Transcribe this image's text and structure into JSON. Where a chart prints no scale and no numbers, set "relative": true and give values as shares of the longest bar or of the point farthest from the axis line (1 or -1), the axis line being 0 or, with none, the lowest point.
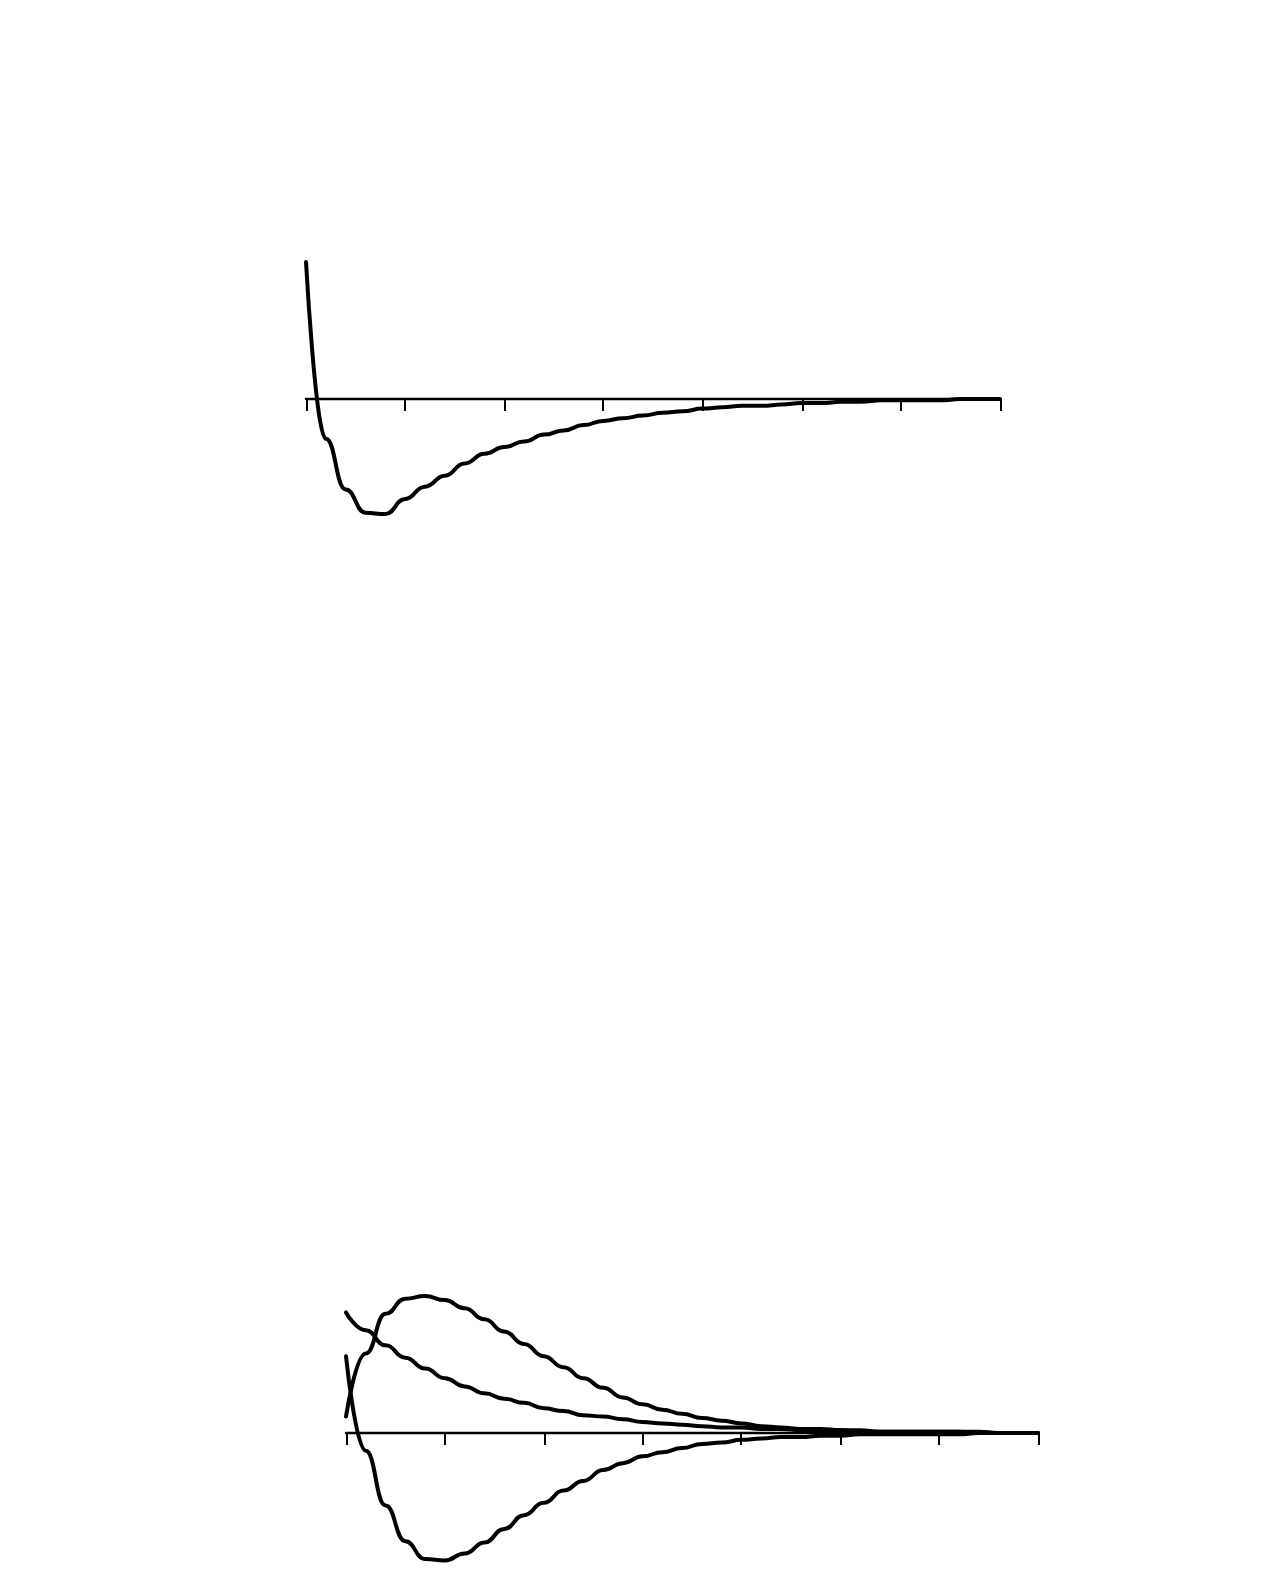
{
  "chart_data": [
    {
      "type": "line",
      "relative": true,
      "marker": "none",
      "line_style": "solid",
      "grid": false,
      "tick_labels": false,
      "categories": [
        null,
        null,
        null,
        null,
        null,
        null,
        null,
        null,
        null,
        null,
        null,
        null,
        null,
        null,
        null,
        null,
        null,
        null,
        null,
        null,
        null,
        null,
        null,
        null,
        null,
        null,
        null,
        null,
        null,
        null,
        null,
        null,
        null,
        null,
        null,
        null
      ],
      "series": [
        {
          "color": "#000000",
          "values": [
            1,
            -0.29,
            -0.66,
            -0.83,
            -0.84,
            -0.73,
            -0.64,
            -0.56,
            -0.47,
            -0.4,
            -0.35,
            -0.31,
            -0.26,
            -0.23,
            -0.19,
            -0.16,
            -0.14,
            -0.12,
            -0.1,
            -0.09,
            -0.07,
            -0.06,
            -0.05,
            -0.05,
            -0.04,
            -0.03,
            -0.03,
            -0.02,
            -0.02,
            -0.01,
            -0.01,
            -0.01,
            -0.01,
            0,
            0,
            0
          ]
        }
      ]
    },
    {
      "type": "line",
      "relative": true,
      "marker": "none",
      "line_style": "solid",
      "grid": false,
      "tick_labels": false,
      "categories": [
        null,
        null,
        null,
        null,
        null,
        null,
        null,
        null,
        null,
        null,
        null,
        null,
        null,
        null,
        null,
        null,
        null,
        null,
        null,
        null,
        null,
        null,
        null,
        null,
        null,
        null,
        null,
        null,
        null,
        null,
        null,
        null,
        null,
        null,
        null,
        null
      ],
      "series": [
        {
          "color": "#000000",
          "values": [
            0.12,
            0.58,
            0.87,
            0.98,
            1,
            0.97,
            0.91,
            0.83,
            0.74,
            0.65,
            0.56,
            0.48,
            0.4,
            0.33,
            0.26,
            0.21,
            0.17,
            0.14,
            0.11,
            0.09,
            0.07,
            0.05,
            0.04,
            0.03,
            0.03,
            0.02,
            0.02,
            0.01,
            0.01,
            0.01,
            0.01,
            0.01,
            0,
            0,
            0,
            0
          ]
        },
        {
          "color": "#000000",
          "values": [
            0.88,
            0.75,
            0.64,
            0.55,
            0.47,
            0.4,
            0.34,
            0.29,
            0.25,
            0.22,
            0.18,
            0.16,
            0.13,
            0.12,
            0.1,
            0.08,
            0.07,
            0.06,
            0.05,
            0.04,
            0.04,
            0.03,
            0.03,
            0.02,
            0.02,
            0.02,
            0.01,
            0.01,
            0.01,
            0.01,
            0.01,
            0.01,
            0.01,
            0,
            0,
            0
          ]
        },
        {
          "color": "#000000",
          "values": [
            0.56,
            -0.13,
            -0.53,
            -0.79,
            -0.92,
            -0.93,
            -0.88,
            -0.8,
            -0.7,
            -0.6,
            -0.51,
            -0.42,
            -0.35,
            -0.27,
            -0.22,
            -0.17,
            -0.14,
            -0.11,
            -0.08,
            -0.07,
            -0.05,
            -0.04,
            -0.03,
            -0.03,
            -0.02,
            -0.02,
            -0.01,
            -0.01,
            -0.01,
            -0.01,
            -0.01,
            -0.01,
            0,
            0,
            0,
            0
          ]
        }
      ]
    }
  ]
}
